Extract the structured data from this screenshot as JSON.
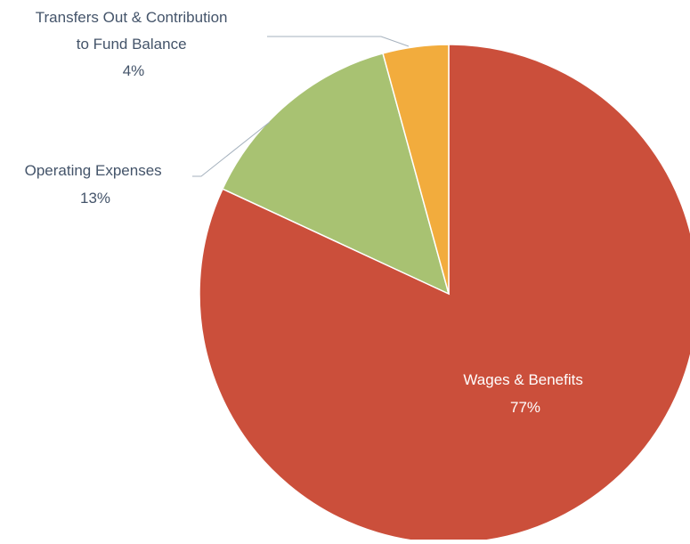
{
  "chart_data": {
    "type": "pie",
    "title": "",
    "slices": [
      {
        "label": "Wages & Benefits",
        "value": 77,
        "display": "77%",
        "color": "#CB4F3B",
        "label_color": "#FFFFFF"
      },
      {
        "label": "Operating Expenses",
        "value": 13,
        "display": "13%",
        "color": "#A8C272",
        "label_color": "#44546A"
      },
      {
        "label": "Transfers Out & Contribution to Fund Balance",
        "value": 4,
        "display": "4%",
        "color": "#F2AC3D",
        "label_color": "#44546A"
      }
    ],
    "start_angle_deg": 0,
    "direction": "clockwise",
    "leader_line_color": "#A6B2BE"
  }
}
